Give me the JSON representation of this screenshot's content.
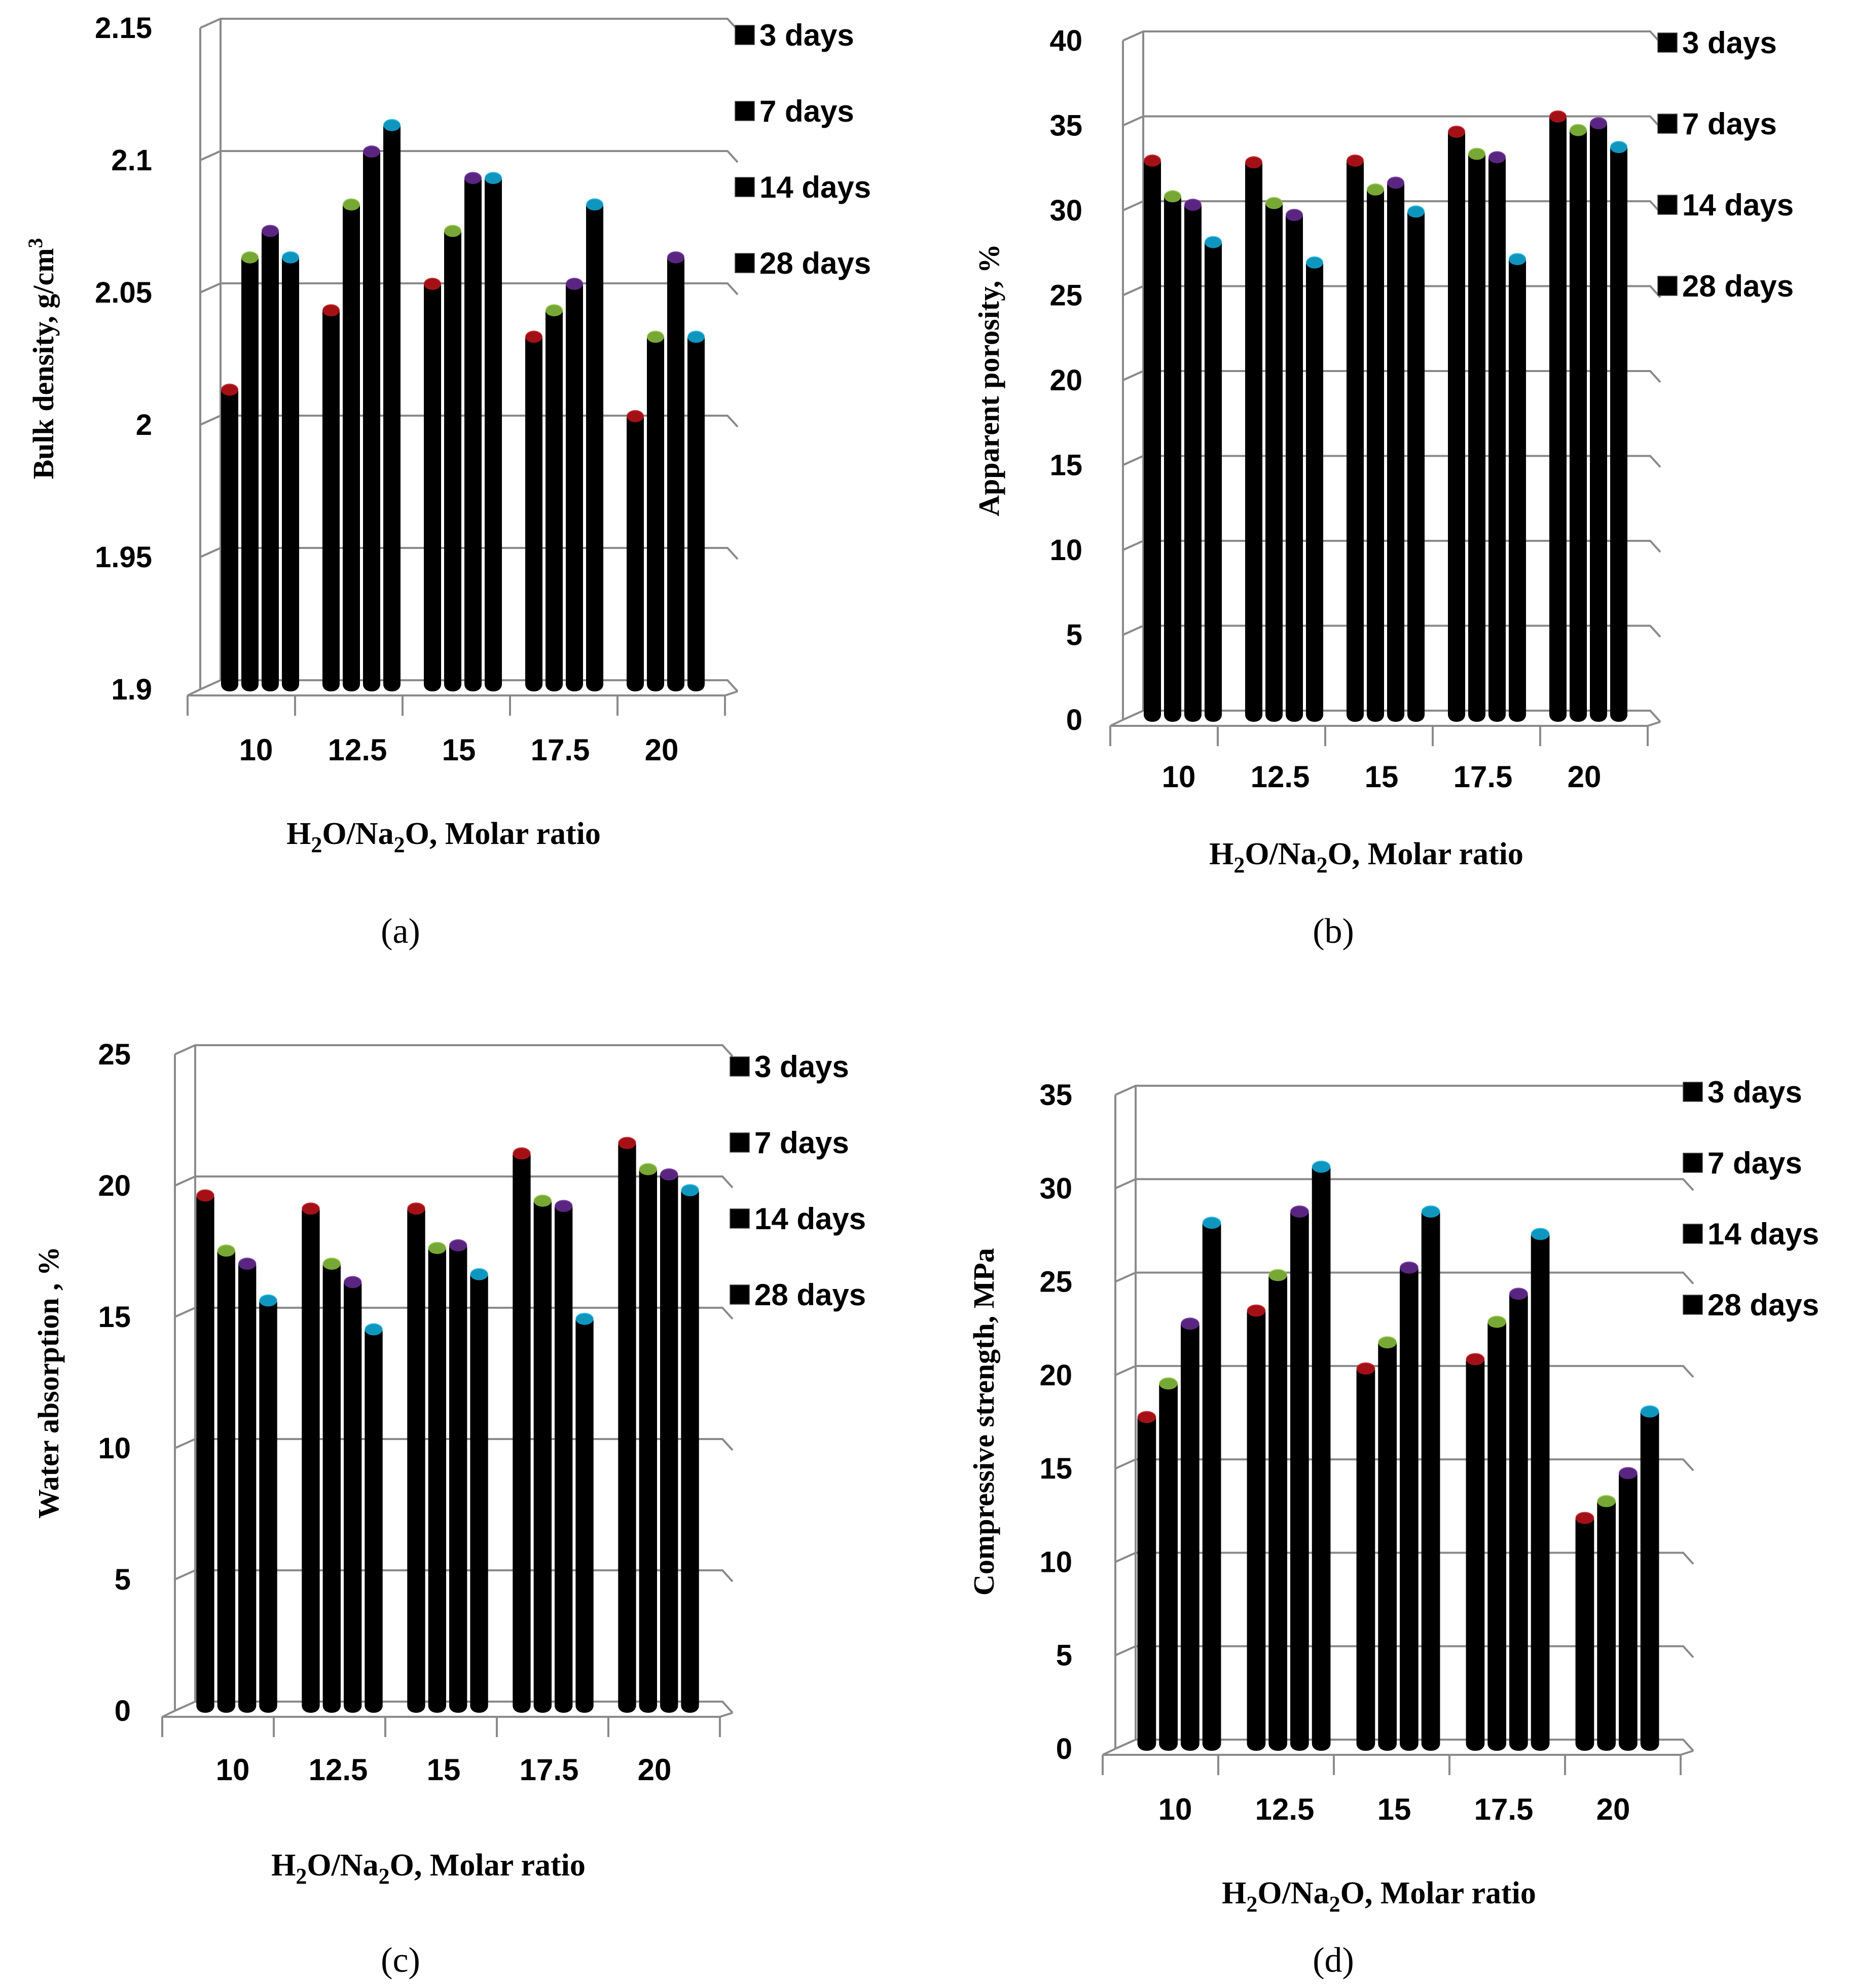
{
  "colors": {
    "3 days": "#c0141b",
    "7 days": "#8cc63e",
    "14 days": "#6a2c97",
    "28 days": "#12b0e0"
  },
  "chart_data": [
    {
      "id": "a",
      "type": "bar",
      "panel_label": "(a)",
      "ylabel": "Bulk density,  g/cm",
      "ylabel_sup": "3",
      "xlabel": {
        "pre": "H",
        "s1": "2",
        "mid": "O/Na",
        "s2": "2",
        "post": "O, Molar ratio"
      },
      "categories": [
        "10",
        "12.5",
        "15",
        "17.5",
        "20"
      ],
      "ylim": [
        1.9,
        2.15
      ],
      "yticks": [
        "1.9",
        "1.95",
        "2",
        "2.05",
        "2.1",
        "2.15"
      ],
      "series": [
        {
          "name": "3 days",
          "values": [
            2.015,
            2.045,
            2.055,
            2.035,
            2.005
          ]
        },
        {
          "name": "7 days",
          "values": [
            2.065,
            2.085,
            2.075,
            2.045,
            2.035
          ]
        },
        {
          "name": "14 days",
          "values": [
            2.075,
            2.105,
            2.095,
            2.055,
            2.065
          ]
        },
        {
          "name": "28 days",
          "values": [
            2.065,
            2.115,
            2.095,
            2.085,
            2.035
          ]
        }
      ]
    },
    {
      "id": "b",
      "type": "bar",
      "panel_label": "(b)",
      "ylabel": "Apparent porosity,  %",
      "ylabel_sup": "",
      "xlabel": {
        "pre": "H",
        "s1": "2",
        "mid": "O/Na",
        "s2": "2",
        "post": "O, Molar ratio"
      },
      "categories": [
        "10",
        "12.5",
        "15",
        "17.5",
        "20"
      ],
      "ylim": [
        0,
        40
      ],
      "yticks": [
        "0",
        "5",
        "10",
        "15",
        "20",
        "25",
        "30",
        "35",
        "40"
      ],
      "series": [
        {
          "name": "3 days",
          "values": [
            33.2,
            33.1,
            33.2,
            34.9,
            35.8
          ]
        },
        {
          "name": "7 days",
          "values": [
            31.1,
            30.7,
            31.5,
            33.6,
            35
          ]
        },
        {
          "name": "14 days",
          "values": [
            30.6,
            30,
            31.9,
            33.4,
            35.4
          ]
        },
        {
          "name": "28 days",
          "values": [
            28.4,
            27.2,
            30.2,
            27.4,
            34
          ]
        }
      ]
    },
    {
      "id": "c",
      "type": "bar",
      "panel_label": "(c)",
      "ylabel": "Water absorption ,  %",
      "ylabel_sup": "",
      "xlabel": {
        "pre": "H",
        "s1": "2",
        "mid": "O/Na",
        "s2": "2",
        "post": "O, Molar ratio"
      },
      "categories": [
        "10",
        "12.5",
        "15",
        "17.5",
        "20"
      ],
      "ylim": [
        0,
        25
      ],
      "yticks": [
        "0",
        "5",
        "10",
        "15",
        "20",
        "25"
      ],
      "series": [
        {
          "name": "3 days",
          "values": [
            19.8,
            19.3,
            19.3,
            21.4,
            21.8
          ]
        },
        {
          "name": "7 days",
          "values": [
            17.7,
            17.2,
            17.8,
            19.6,
            20.8
          ]
        },
        {
          "name": "14 days",
          "values": [
            17.2,
            16.5,
            17.9,
            19.4,
            20.6
          ]
        },
        {
          "name": "28 days",
          "values": [
            15.8,
            14.7,
            16.8,
            15.1,
            20
          ]
        }
      ]
    },
    {
      "id": "d",
      "type": "bar",
      "panel_label": "(d)",
      "ylabel": "Compressive strength, MPa",
      "ylabel_sup": "",
      "xlabel": {
        "pre": "H",
        "s1": "2",
        "mid": "O/Na",
        "s2": "2",
        "post": "O, Molar ratio"
      },
      "categories": [
        "10",
        "12.5",
        "15",
        "17.5",
        "20"
      ],
      "ylim": [
        0,
        35
      ],
      "yticks": [
        "0",
        "5",
        "10",
        "15",
        "20",
        "25",
        "30",
        "35"
      ],
      "series": [
        {
          "name": "3 days",
          "values": [
            18,
            23.7,
            20.6,
            21.1,
            12.6
          ]
        },
        {
          "name": "7 days",
          "values": [
            19.8,
            25.6,
            22,
            23.1,
            13.5
          ]
        },
        {
          "name": "14 days",
          "values": [
            23,
            29,
            26,
            24.6,
            15
          ]
        },
        {
          "name": "28 days",
          "values": [
            28.4,
            31.4,
            29,
            27.8,
            18.3
          ]
        }
      ]
    }
  ]
}
